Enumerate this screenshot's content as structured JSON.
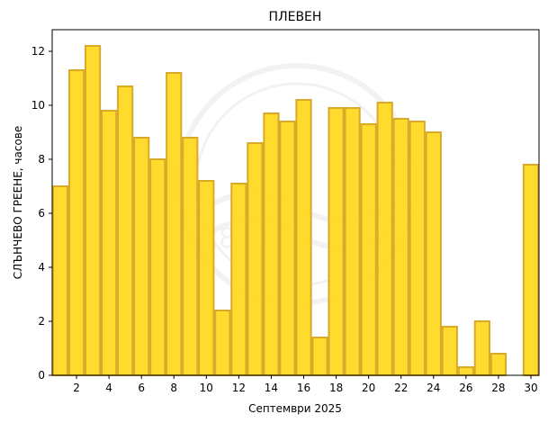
{
  "chart_data": {
    "type": "bar",
    "title": "ПЛЕВЕН",
    "xlabel": "Септември  2025",
    "ylabel": "СЛЪНЧЕВО ГРЕЕНЕ,  часове",
    "x": [
      1,
      2,
      3,
      4,
      5,
      6,
      7,
      8,
      9,
      10,
      11,
      12,
      13,
      14,
      15,
      16,
      17,
      18,
      19,
      20,
      21,
      22,
      23,
      24,
      25,
      26,
      27,
      28,
      29,
      30
    ],
    "values": [
      7.0,
      11.3,
      12.2,
      9.8,
      10.7,
      8.8,
      8.0,
      11.2,
      8.8,
      7.2,
      2.4,
      7.1,
      8.6,
      9.7,
      9.4,
      10.2,
      1.4,
      9.9,
      9.9,
      9.3,
      10.1,
      9.5,
      9.4,
      9.0,
      1.8,
      0.3,
      2.0,
      0.8,
      0.0,
      7.8
    ],
    "xlim": [
      0.5,
      30.5
    ],
    "ylim": [
      0,
      12.8
    ],
    "xticks": [
      2,
      4,
      6,
      8,
      10,
      12,
      14,
      16,
      18,
      20,
      22,
      24,
      26,
      28,
      30
    ],
    "yticks": [
      0,
      2,
      4,
      6,
      8,
      10,
      12
    ],
    "bar_color": "#ffd717",
    "edge_color": "#d9aa2a",
    "grid": false,
    "watermark_text": "1890"
  }
}
